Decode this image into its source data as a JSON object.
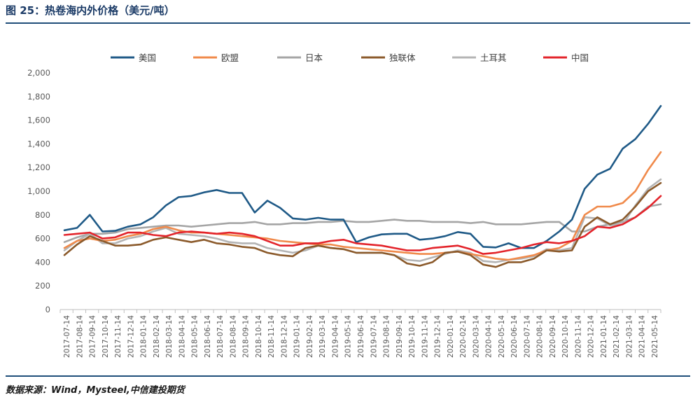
{
  "header": {
    "title": "图 25：热卷海内外价格（美元/吨）",
    "source": "数据来源：Wind，Mysteel,中信建投期货"
  },
  "chart_data": {
    "type": "line",
    "title": "热卷海内外价格（美元/吨）",
    "xlabel": "",
    "ylabel": "",
    "ylim": [
      0,
      2000
    ],
    "yticks": [
      0,
      200,
      400,
      600,
      800,
      1000,
      1200,
      1400,
      1600,
      1800,
      2000
    ],
    "ytick_labels": [
      "0",
      "200",
      "400",
      "600",
      "800",
      "1,000",
      "1,200",
      "1,400",
      "1,600",
      "1,800",
      "2,000"
    ],
    "x_tick_labels": [
      "2017-07-14",
      "2017-08-14",
      "2017-09-14",
      "2017-10-14",
      "2017-11-14",
      "2017-12-14",
      "2018-01-14",
      "2018-02-14",
      "2018-03-14",
      "2018-04-14",
      "2018-05-14",
      "2018-06-14",
      "2018-07-14",
      "2018-08-14",
      "2018-09-14",
      "2018-10-14",
      "2018-11-14",
      "2018-12-14",
      "2019-01-14",
      "2019-02-14",
      "2019-03-14",
      "2019-04-14",
      "2019-05-14",
      "2019-06-14",
      "2019-07-14",
      "2019-08-14",
      "2019-09-14",
      "2019-10-14",
      "2019-11-14",
      "2019-12-14",
      "2020-01-14",
      "2020-02-14",
      "2020-03-14",
      "2020-04-14",
      "2020-05-14",
      "2020-06-14",
      "2020-07-14",
      "2020-08-14",
      "2020-09-14",
      "2020-10-14",
      "2020-11-14",
      "2020-12-14",
      "2021-01-14",
      "2021-02-14",
      "2021-03-14",
      "2021-04-14",
      "2021-05-14"
    ],
    "x": [
      "2017-07",
      "2017-08",
      "2017-09",
      "2017-10",
      "2017-11",
      "2017-12",
      "2018-01",
      "2018-02",
      "2018-03",
      "2018-04",
      "2018-05",
      "2018-06",
      "2018-07",
      "2018-08",
      "2018-09",
      "2018-10",
      "2018-11",
      "2018-12",
      "2019-01",
      "2019-02",
      "2019-03",
      "2019-04",
      "2019-05",
      "2019-06",
      "2019-07",
      "2019-08",
      "2019-09",
      "2019-10",
      "2019-11",
      "2019-12",
      "2020-01",
      "2020-02",
      "2020-03",
      "2020-04",
      "2020-05",
      "2020-06",
      "2020-07",
      "2020-08",
      "2020-09",
      "2020-10",
      "2020-11",
      "2020-12",
      "2021-01",
      "2021-02",
      "2021-03",
      "2021-04",
      "2021-05",
      "2021-06"
    ],
    "grid": false,
    "legend_position": "top",
    "series": [
      {
        "name": "美国",
        "color": "#1f5a87",
        "values": [
          670,
          690,
          800,
          660,
          665,
          700,
          720,
          780,
          880,
          950,
          960,
          990,
          1010,
          985,
          985,
          820,
          920,
          860,
          770,
          760,
          775,
          760,
          760,
          570,
          610,
          635,
          640,
          640,
          590,
          600,
          620,
          655,
          640,
          530,
          525,
          560,
          520,
          520,
          580,
          660,
          760,
          1020,
          1140,
          1190,
          1360,
          1440,
          1570,
          1720
        ]
      },
      {
        "name": "欧盟",
        "color": "#f08a4b",
        "values": [
          520,
          580,
          600,
          580,
          590,
          620,
          640,
          680,
          700,
          670,
          650,
          650,
          640,
          630,
          620,
          610,
          600,
          580,
          570,
          560,
          550,
          550,
          530,
          520,
          510,
          500,
          490,
          480,
          470,
          470,
          480,
          490,
          470,
          450,
          430,
          420,
          440,
          460,
          500,
          520,
          580,
          800,
          870,
          870,
          900,
          1000,
          1180,
          1330
        ]
      },
      {
        "name": "日本",
        "color": "#a5a5a5",
        "values": [
          570,
          610,
          640,
          640,
          650,
          680,
          690,
          700,
          710,
          710,
          700,
          710,
          720,
          730,
          730,
          740,
          720,
          720,
          730,
          730,
          740,
          740,
          750,
          740,
          740,
          750,
          760,
          750,
          750,
          740,
          740,
          740,
          730,
          740,
          720,
          720,
          720,
          730,
          740,
          740,
          660,
          660,
          700,
          720,
          740,
          780,
          870,
          890
        ]
      },
      {
        "name": "独联体",
        "color": "#8b5a2b",
        "values": [
          460,
          550,
          620,
          580,
          540,
          540,
          550,
          590,
          610,
          590,
          570,
          590,
          560,
          550,
          530,
          520,
          480,
          460,
          450,
          520,
          540,
          520,
          510,
          480,
          480,
          480,
          460,
          390,
          370,
          400,
          480,
          490,
          460,
          380,
          360,
          400,
          400,
          430,
          500,
          490,
          500,
          700,
          780,
          720,
          760,
          870,
          1000,
          1070
        ]
      },
      {
        "name": "土耳其",
        "color": "#b4b4b4",
        "values": [
          500,
          580,
          640,
          560,
          560,
          600,
          620,
          660,
          690,
          640,
          630,
          620,
          600,
          570,
          560,
          560,
          520,
          500,
          480,
          500,
          540,
          520,
          510,
          480,
          480,
          480,
          460,
          420,
          410,
          440,
          470,
          500,
          480,
          410,
          400,
          420,
          430,
          450,
          510,
          500,
          520,
          780,
          770,
          710,
          720,
          880,
          1020,
          1100
        ]
      },
      {
        "name": "中国",
        "color": "#e3242b",
        "values": [
          630,
          640,
          650,
          600,
          610,
          650,
          650,
          630,
          620,
          650,
          660,
          650,
          640,
          650,
          640,
          620,
          580,
          540,
          540,
          560,
          560,
          580,
          590,
          560,
          550,
          540,
          520,
          500,
          500,
          520,
          530,
          540,
          510,
          470,
          480,
          500,
          520,
          550,
          570,
          560,
          580,
          620,
          700,
          690,
          720,
          780,
          860,
          960
        ]
      }
    ]
  }
}
